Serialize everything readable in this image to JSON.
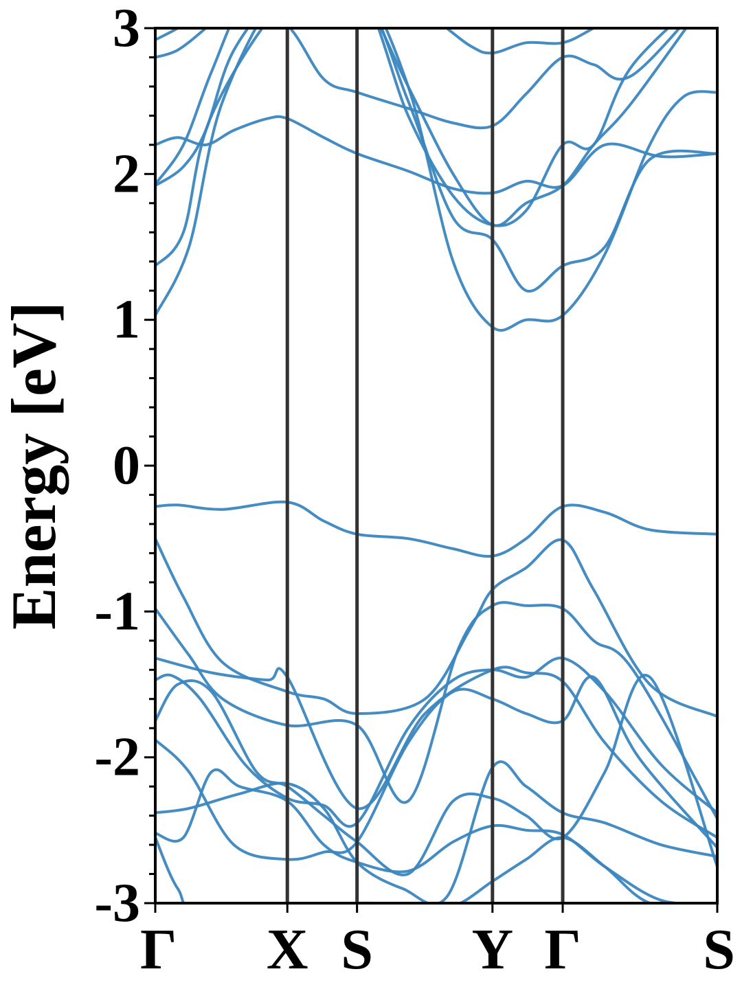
{
  "chart_data": {
    "type": "line",
    "title": "",
    "xlabel": "",
    "ylabel": "Energy [eV]",
    "ylim": [
      -3,
      3
    ],
    "yticks": [
      -3,
      -2,
      -1,
      0,
      1,
      2,
      3
    ],
    "ytick_labels": [
      "-3",
      "-2",
      "-1",
      "0",
      "1",
      "2",
      "3"
    ],
    "grid": false,
    "legend": "none",
    "k_path": [
      {
        "label": "Γ",
        "k": 0
      },
      {
        "label": "X",
        "k": 0.235
      },
      {
        "label": "S",
        "k": 0.359
      },
      {
        "label": "Y",
        "k": 0.6
      },
      {
        "label": "Γ",
        "k": 0.725
      },
      {
        "label": "S",
        "k": 1.0
      }
    ],
    "line_color": "#3b86bf",
    "divider_color": "#333333",
    "series": [
      {
        "k": [
          0,
          0.04,
          0.12,
          0.235,
          0.3,
          0.359,
          0.45,
          0.53,
          0.6,
          0.66,
          0.725,
          0.8,
          0.88,
          1.0
        ],
        "values": [
          -0.28,
          -0.27,
          -0.3,
          -0.25,
          -0.38,
          -0.47,
          -0.5,
          -0.57,
          -0.62,
          -0.5,
          -0.28,
          -0.32,
          -0.44,
          -0.47
        ]
      },
      {
        "k": [
          0,
          0.05,
          0.12,
          0.235,
          0.3,
          0.359,
          0.48,
          0.56,
          0.6,
          0.66,
          0.725,
          0.78,
          0.88,
          1.0
        ],
        "values": [
          -0.5,
          -0.9,
          -1.35,
          -1.55,
          -1.6,
          -1.7,
          -1.6,
          -1.12,
          -0.85,
          -0.7,
          -0.51,
          -0.85,
          -1.5,
          -1.72
        ]
      },
      {
        "k": [
          0,
          0.06,
          0.12,
          0.235,
          0.359,
          0.45,
          0.54,
          0.6,
          0.66,
          0.725,
          0.78,
          0.85,
          1.0
        ],
        "values": [
          -0.98,
          -1.3,
          -1.6,
          -1.78,
          -1.78,
          -2.3,
          -1.25,
          -0.96,
          -0.96,
          -0.98,
          -1.2,
          -1.4,
          -2.42
        ]
      },
      {
        "k": [
          0,
          0.1,
          0.2,
          0.235,
          0.359,
          0.48,
          0.6,
          0.66,
          0.725,
          0.8,
          0.9,
          1.0
        ],
        "values": [
          -1.32,
          -1.42,
          -1.47,
          -1.45,
          -2.35,
          -1.7,
          -1.4,
          -1.42,
          -1.48,
          -1.9,
          -2.3,
          -2.55
        ]
      },
      {
        "k": [
          0,
          0.03,
          0.08,
          0.16,
          0.235,
          0.3,
          0.359,
          0.45,
          0.53,
          0.6,
          0.66,
          0.725,
          0.8,
          0.9,
          1.0
        ],
        "values": [
          -1.47,
          -1.44,
          -1.6,
          -2.05,
          -2.28,
          -2.33,
          -2.45,
          -1.8,
          -1.47,
          -1.4,
          -1.45,
          -1.32,
          -1.55,
          -2.05,
          -2.38
        ]
      },
      {
        "k": [
          0,
          0.04,
          0.1,
          0.18,
          0.235,
          0.3,
          0.359,
          0.45,
          0.53,
          0.6,
          0.66,
          0.725,
          0.8,
          0.88,
          1.0
        ],
        "values": [
          -1.75,
          -1.5,
          -1.55,
          -2.1,
          -2.2,
          -2.4,
          -2.58,
          -2.8,
          -2.3,
          -2.28,
          -2.4,
          -2.55,
          -2.1,
          -1.45,
          -2.75
        ]
      },
      {
        "k": [
          0,
          0.06,
          0.14,
          0.235,
          0.3,
          0.359,
          0.45,
          0.53,
          0.6,
          0.66,
          0.725,
          0.78,
          0.86,
          1.0
        ],
        "values": [
          -1.88,
          -2.1,
          -2.6,
          -2.7,
          -2.65,
          -2.58,
          -1.9,
          -1.55,
          -1.6,
          -1.7,
          -1.75,
          -1.45,
          -2.0,
          -2.62
        ]
      },
      {
        "k": [
          0,
          0.06,
          0.15,
          0.235,
          0.3,
          0.359,
          0.44,
          0.52,
          0.6,
          0.66,
          0.725,
          0.8,
          0.9,
          1.0
        ],
        "values": [
          -2.38,
          -2.35,
          -2.25,
          -2.18,
          -2.35,
          -2.72,
          -2.9,
          -2.95,
          -2.07,
          -2.2,
          -2.38,
          -2.45,
          -2.6,
          -2.68
        ]
      },
      {
        "k": [
          0,
          0.05,
          0.1,
          0.15,
          0.235,
          0.3,
          0.359,
          0.45,
          0.53,
          0.6,
          0.66,
          0.725,
          0.8,
          0.9,
          1.0
        ],
        "values": [
          -2.52,
          -2.55,
          -2.1,
          -2.2,
          -2.3,
          -2.6,
          -2.72,
          -2.78,
          -2.58,
          -2.47,
          -2.5,
          -2.53,
          -2.75,
          -2.98,
          -3.0
        ]
      },
      {
        "k": [
          0,
          0.04,
          0.09,
          0.359,
          0.45,
          0.53,
          0.6,
          0.66,
          0.725,
          0.8,
          0.88,
          1.0
        ],
        "values": [
          -2.55,
          -2.9,
          -3.05,
          -3.0,
          -3.02,
          -3.02,
          -2.85,
          -2.7,
          -2.55,
          -2.75,
          -3.0,
          -3.05
        ]
      },
      {
        "k": [
          0,
          0.06,
          0.12,
          0.235,
          0.359,
          0.45,
          0.53,
          0.6,
          0.66,
          0.725,
          0.8,
          0.88,
          0.94,
          1.0
        ],
        "values": [
          1.03,
          1.5,
          2.5,
          3.3,
          3.3,
          2.6,
          1.4,
          0.95,
          1.0,
          1.03,
          1.45,
          2.2,
          2.53,
          2.56
        ]
      },
      {
        "k": [
          0,
          0.05,
          0.1,
          0.235,
          0.359,
          0.45,
          0.53,
          0.6,
          0.66,
          0.725,
          0.8,
          0.88,
          1.0
        ],
        "values": [
          1.37,
          1.6,
          2.4,
          3.2,
          3.3,
          2.5,
          1.7,
          1.55,
          1.2,
          1.37,
          1.5,
          2.1,
          2.14
        ]
      },
      {
        "k": [
          0,
          0.04,
          0.09,
          0.14,
          0.2,
          0.235,
          0.3,
          0.359,
          0.45,
          0.53,
          0.6,
          0.66,
          0.725,
          0.8,
          0.9,
          1.0
        ],
        "values": [
          2.2,
          2.25,
          2.2,
          2.3,
          2.38,
          2.38,
          2.25,
          2.14,
          2.02,
          1.9,
          1.87,
          1.95,
          1.92,
          2.2,
          2.12,
          2.14
        ]
      },
      {
        "k": [
          0,
          0.05,
          0.09,
          0.14,
          0.235,
          0.3,
          0.359,
          0.45,
          0.53,
          0.6,
          0.66,
          0.725,
          0.78,
          0.85,
          1.0
        ],
        "values": [
          1.92,
          2.05,
          2.3,
          2.85,
          3.3,
          3.3,
          3.3,
          2.6,
          2.0,
          1.65,
          1.8,
          1.92,
          2.2,
          2.5,
          3.3
        ]
      },
      {
        "k": [
          0,
          0.05,
          0.1,
          0.16,
          0.235,
          0.359,
          0.45,
          0.53,
          0.6,
          0.66,
          0.725,
          0.78,
          0.85,
          1.0
        ],
        "values": [
          1.93,
          2.2,
          2.7,
          3.2,
          3.3,
          3.3,
          2.4,
          1.85,
          1.65,
          1.75,
          2.2,
          2.2,
          2.75,
          3.3
        ]
      },
      {
        "k": [
          0,
          0.04,
          0.09,
          0.15,
          0.235,
          0.3,
          0.359,
          0.45,
          0.53,
          0.6,
          0.66,
          0.725,
          0.78,
          0.85,
          1.0
        ],
        "values": [
          2.8,
          2.85,
          3.0,
          3.2,
          3.02,
          2.65,
          2.56,
          2.45,
          2.35,
          2.33,
          2.55,
          2.8,
          2.75,
          2.68,
          3.3
        ]
      },
      {
        "k": [
          0,
          0.04,
          0.08,
          0.14,
          0.235,
          0.359,
          0.48,
          0.56,
          0.6,
          0.66,
          0.725,
          0.78,
          0.85,
          1.0
        ],
        "values": [
          2.92,
          3.0,
          3.1,
          3.25,
          3.3,
          3.3,
          3.1,
          2.88,
          2.83,
          2.9,
          2.9,
          3.0,
          3.15,
          3.3
        ]
      }
    ]
  }
}
